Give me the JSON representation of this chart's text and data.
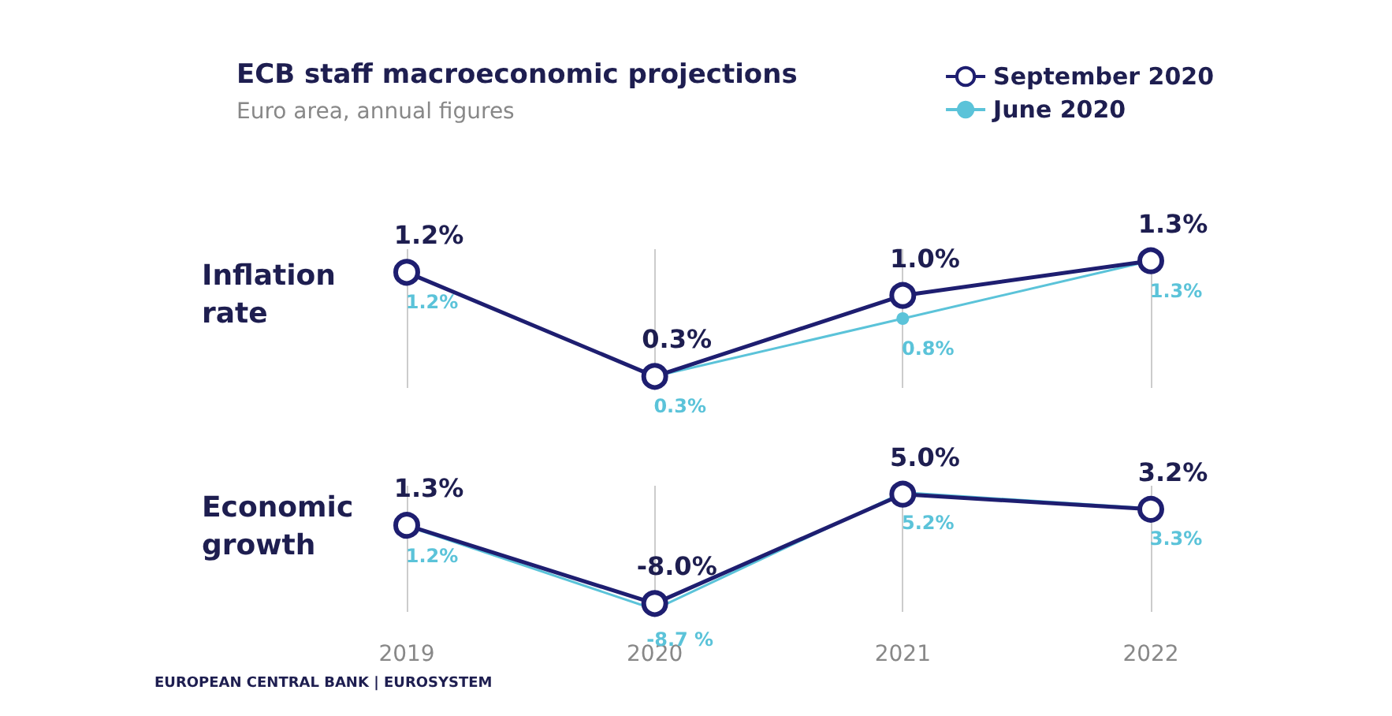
{
  "chart_data": [
    {
      "type": "line",
      "title": "ECB staff macroeconomic projections",
      "subtitle": "Euro area, annual figures",
      "ylabel": "Inflation rate",
      "categories": [
        "2019",
        "2020",
        "2021",
        "2022"
      ],
      "tick_labels": false,
      "grid": "x",
      "legend": "top right",
      "series": [
        {
          "name": "June 2020",
          "color": "#5bc3d9",
          "values": [
            1.2,
            0.3,
            0.8,
            1.3
          ],
          "value_labels": [
            "1.2%",
            "0.3%",
            "0.8%",
            "1.3%"
          ],
          "marker": "circle"
        },
        {
          "name": "September 2020",
          "color": "#1e1e70",
          "values": [
            1.2,
            0.3,
            1.0,
            1.3
          ],
          "value_labels": [
            "1.2%",
            "0.3%",
            "1.0%",
            "1.3%"
          ],
          "marker": "circle"
        }
      ]
    },
    {
      "type": "line",
      "ylabel": "Economic growth",
      "categories": [
        "2019",
        "2020",
        "2021",
        "2022"
      ],
      "tick_labels": "x",
      "grid": "x",
      "annotations": [
        "EUROPEAN CENTRAL BANK | EUROSYSTEM"
      ],
      "series": [
        {
          "color": "#5bc3d9",
          "values": [
            1.2,
            -8.7,
            5.2,
            3.3
          ],
          "value_labels": [
            "1.2%",
            "-8.7 %",
            "5.2%",
            "3.3%"
          ],
          "marker": "circle"
        },
        {
          "color": "#1e1e70",
          "values": [
            1.3,
            -8.0,
            5.0,
            3.2
          ],
          "value_labels": [
            "1.3%",
            "-8.0%",
            "5.0%",
            "3.2%"
          ],
          "marker": "circle"
        }
      ]
    }
  ]
}
